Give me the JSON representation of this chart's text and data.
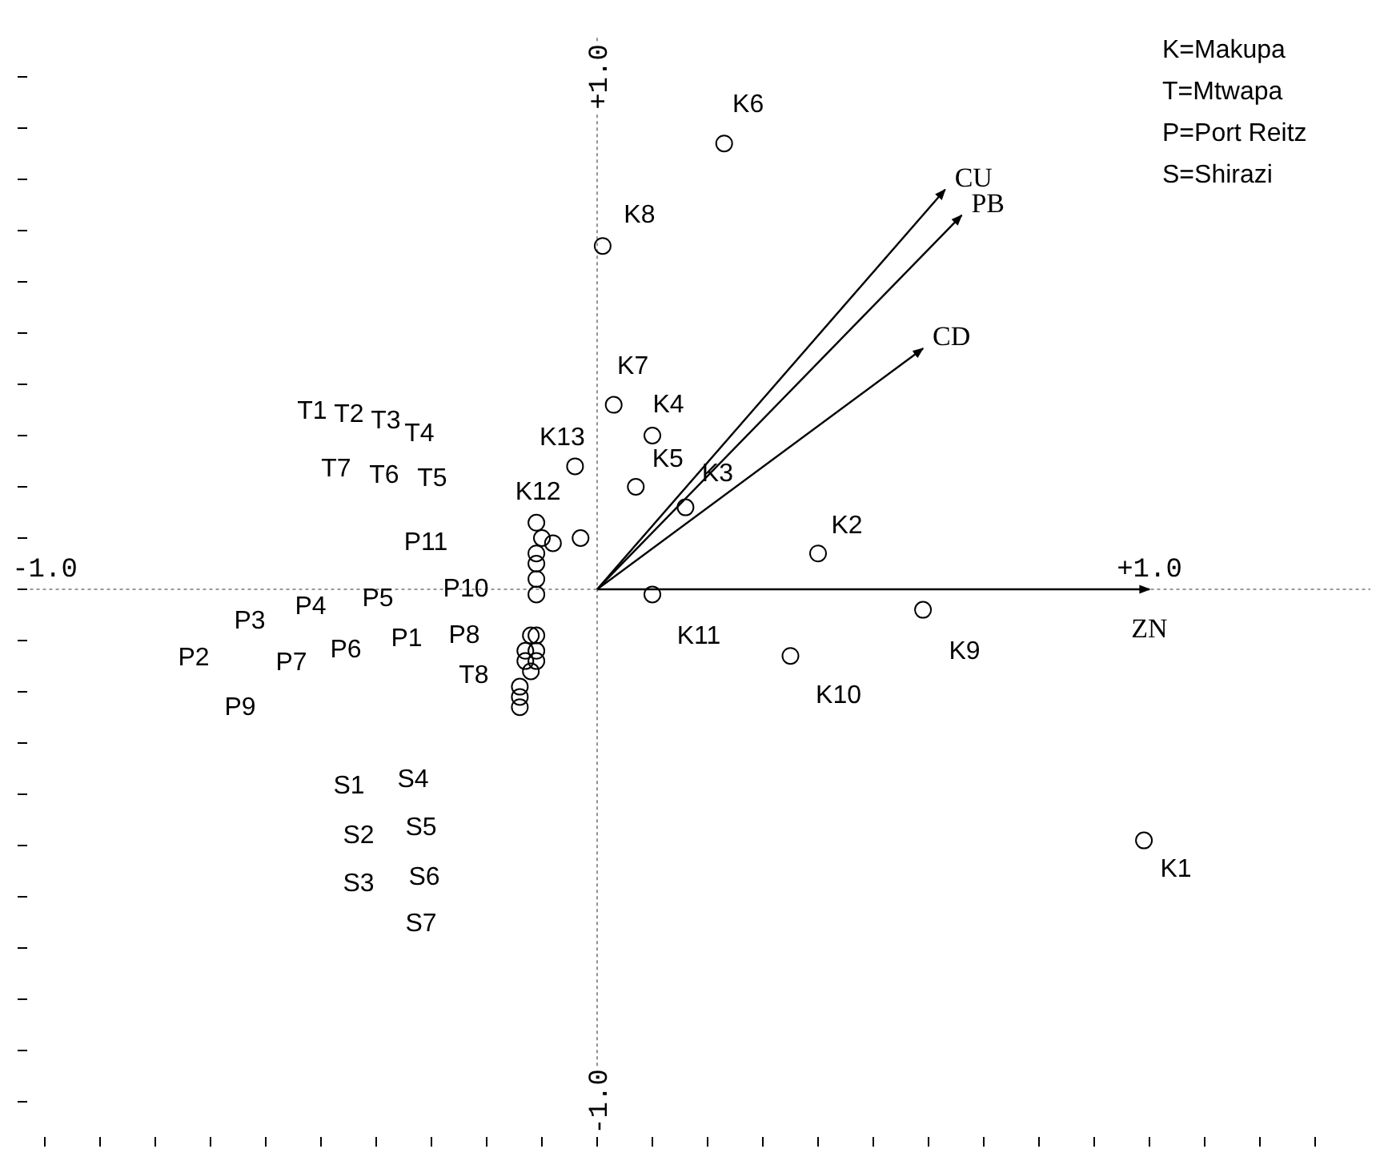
{
  "chart_data": {
    "type": "scatter",
    "xlim": [
      -1.05,
      1.4
    ],
    "ylim": [
      -1.08,
      1.08
    ],
    "xticks": [
      {
        "value": -1,
        "label": "-1.0"
      },
      {
        "value": -0.9,
        "label": null
      },
      {
        "value": -0.8,
        "label": null
      },
      {
        "value": -0.7,
        "label": null
      },
      {
        "value": -0.6,
        "label": null
      },
      {
        "value": -0.5,
        "label": null
      },
      {
        "value": -0.4,
        "label": null
      },
      {
        "value": -0.3,
        "label": null
      },
      {
        "value": -0.2,
        "label": null
      },
      {
        "value": -0.1,
        "label": null
      },
      {
        "value": 0,
        "label": null
      },
      {
        "value": 0.1,
        "label": null
      },
      {
        "value": 0.2,
        "label": null
      },
      {
        "value": 0.3,
        "label": null
      },
      {
        "value": 0.4,
        "label": null
      },
      {
        "value": 0.5,
        "label": null
      },
      {
        "value": 0.6,
        "label": null
      },
      {
        "value": 0.7,
        "label": null
      },
      {
        "value": 0.8,
        "label": null
      },
      {
        "value": 0.9,
        "label": null
      },
      {
        "value": 1,
        "label": "+1.0"
      },
      {
        "value": 1.1,
        "label": null
      },
      {
        "value": 1.2,
        "label": null
      },
      {
        "value": 1.3,
        "label": null
      }
    ],
    "yticks": [
      {
        "value": -1,
        "label": "-1.0"
      },
      {
        "value": -0.9,
        "label": null
      },
      {
        "value": -0.8,
        "label": null
      },
      {
        "value": -0.7,
        "label": null
      },
      {
        "value": -0.6,
        "label": null
      },
      {
        "value": -0.5,
        "label": null
      },
      {
        "value": -0.4,
        "label": null
      },
      {
        "value": -0.3,
        "label": null
      },
      {
        "value": -0.2,
        "label": null
      },
      {
        "value": -0.1,
        "label": null
      },
      {
        "value": 0,
        "label": null
      },
      {
        "value": 0.1,
        "label": null
      },
      {
        "value": 0.2,
        "label": null
      },
      {
        "value": 0.3,
        "label": null
      },
      {
        "value": 0.4,
        "label": null
      },
      {
        "value": 0.5,
        "label": null
      },
      {
        "value": 0.6,
        "label": null
      },
      {
        "value": 0.7,
        "label": null
      },
      {
        "value": 0.8,
        "label": null
      },
      {
        "value": 0.9,
        "label": null
      },
      {
        "value": 1,
        "label": "+1.0"
      }
    ],
    "marker": "circle",
    "series": [
      {
        "type": "scatter",
        "color": "#000000",
        "x": [
          0.23,
          0.01,
          0.03,
          0.1,
          0.07,
          0.16,
          -0.04,
          -0.03,
          0.4,
          0.1,
          0.35,
          0.59,
          0.99,
          -0.11,
          -0.1,
          -0.08,
          -0.11,
          -0.11,
          -0.11,
          -0.11,
          -0.12,
          -0.11,
          -0.13,
          -0.11,
          -0.13,
          -0.11,
          -0.12,
          -0.14,
          -0.14,
          -0.14
        ],
        "values": [
          0.87,
          0.67,
          0.36,
          0.3,
          0.2,
          0.16,
          0.24,
          0.1,
          0.07,
          -0.01,
          -0.13,
          -0.04,
          -0.49,
          0.13,
          0.1,
          0.09,
          0.07,
          0.05,
          0.02,
          -0.01,
          -0.09,
          -0.09,
          -0.12,
          -0.12,
          -0.14,
          -0.14,
          -0.16,
          -0.19,
          -0.21,
          -0.23
        ]
      },
      {
        "type": "line",
        "name": "CU",
        "color": "#000000",
        "marker": "none",
        "x": [
          0,
          0.63
        ],
        "values": [
          0,
          0.78
        ]
      },
      {
        "type": "line",
        "name": "PB",
        "color": "#000000",
        "marker": "none",
        "x": [
          0,
          0.66
        ],
        "values": [
          0,
          0.73
        ]
      },
      {
        "type": "line",
        "name": "CD",
        "color": "#000000",
        "marker": "none",
        "x": [
          0,
          0.59
        ],
        "values": [
          0,
          0.47
        ]
      },
      {
        "type": "line",
        "name": "ZN",
        "color": "#000000",
        "marker": "none",
        "x": [
          0,
          1.0
        ],
        "values": [
          0,
          0
        ]
      }
    ],
    "annotations": [
      "K=Makupa",
      "T=Mtwapa",
      "P=Port Reitz",
      "S=Shirazi",
      {
        "text": "K6",
        "x": 0.23,
        "y": 0.87
      },
      {
        "text": "K8",
        "x": 0.01,
        "y": 0.67
      },
      {
        "text": "K7",
        "x": 0.03,
        "y": 0.36
      },
      {
        "text": "K4",
        "x": 0.1,
        "y": 0.3
      },
      {
        "text": "K5",
        "x": 0.07,
        "y": 0.2
      },
      {
        "text": "K3",
        "x": 0.16,
        "y": 0.16
      },
      {
        "text": "K13",
        "x": -0.04,
        "y": 0.24
      },
      {
        "text": "K12",
        "x": -0.11,
        "y": 0.13
      },
      {
        "text": "K2",
        "x": 0.4,
        "y": 0.07
      },
      {
        "text": "K11",
        "x": 0.1,
        "y": -0.01
      },
      {
        "text": "K10",
        "x": 0.35,
        "y": -0.13
      },
      {
        "text": "K9",
        "x": 0.59,
        "y": -0.04
      },
      {
        "text": "K1",
        "x": 0.99,
        "y": -0.49
      },
      "T1",
      "T2",
      "T3",
      "T4",
      "T7",
      "T6",
      "T5",
      "P11",
      "P10",
      "P5",
      "P4",
      "P3",
      "P2",
      "P7",
      "P6",
      "P1",
      "P8",
      "T8",
      "P9",
      "S1",
      "S4",
      "S2",
      "S5",
      "S3",
      "S6",
      "S7"
    ]
  }
}
